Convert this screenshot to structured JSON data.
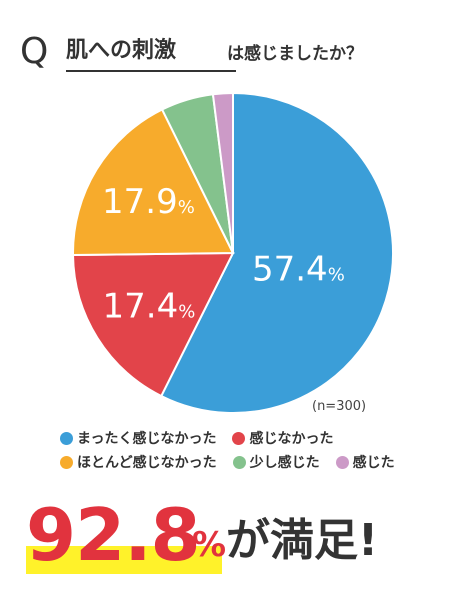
{
  "header": {
    "q_letter": "Q",
    "question_main": "肌への刺激",
    "question_rest": "は感じましたか？"
  },
  "chart_data": {
    "type": "pie",
    "note": "(n=300)",
    "slices": [
      {
        "label": "まったく感じなかった",
        "value": 57.4,
        "display": "57.4",
        "color": "#3b9ed8"
      },
      {
        "label": "感じなかった",
        "value": 17.4,
        "display": "17.4",
        "color": "#e2444a"
      },
      {
        "label": "ほとんど感じなかった",
        "value": 17.9,
        "display": "17.9",
        "color": "#f7ab2c"
      },
      {
        "label": "少し感じた",
        "value": 5.3,
        "display": "",
        "color": "#84c28d"
      },
      {
        "label": "感じた",
        "value": 2.0,
        "display": "",
        "color": "#cc9ac7"
      }
    ],
    "unit": "%"
  },
  "result": {
    "number": "92.8",
    "percent": "%",
    "text": "が満足!"
  }
}
